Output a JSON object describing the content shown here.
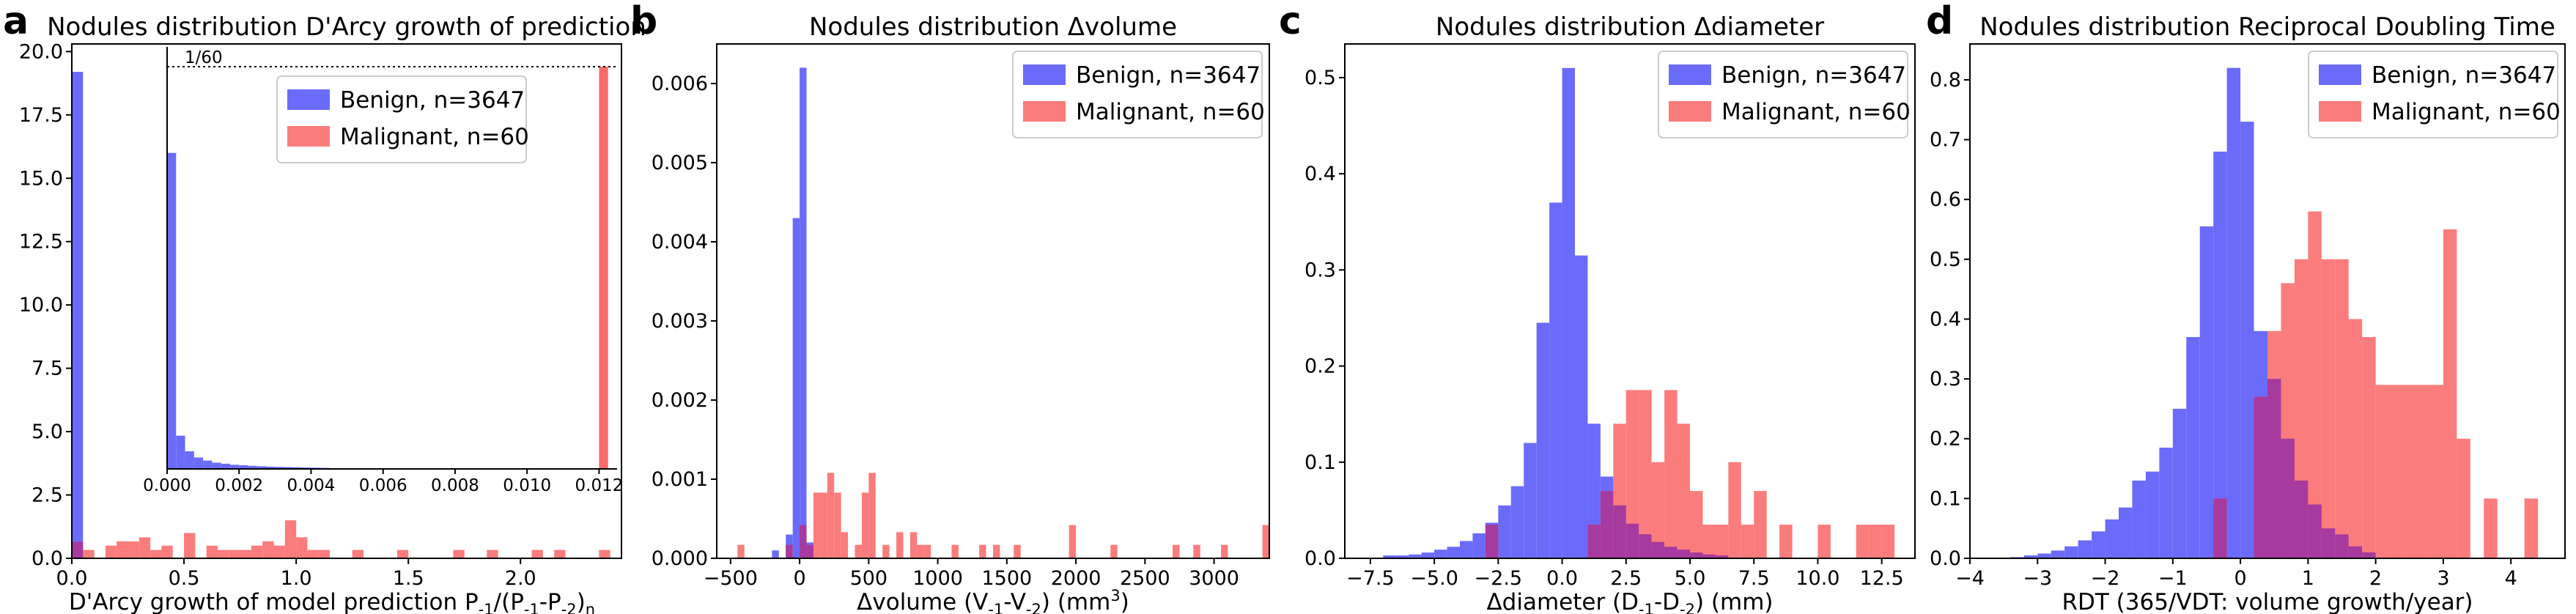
{
  "colors": {
    "benign": "#6b6bfa",
    "malignant": "#fb6a6a",
    "overlap": "#a73a9e"
  },
  "chart_data": [
    {
      "type": "bar",
      "panel": "a",
      "title": "Nodules distribution D'Arcy growth of prediction",
      "xlabel": "D'Arcy growth of model prediction P",
      "xlabel_parts": {
        "p1": "-1",
        "mid": "/(P",
        "p2": "-1",
        "dash": "-P",
        "p3": "-2",
        "close": ")",
        "p4": "n"
      },
      "xlim": [
        0,
        2.45
      ],
      "ylim": [
        0,
        20.3
      ],
      "xticks": [
        0.0,
        0.5,
        1.0,
        1.5,
        2.0
      ],
      "xticklabels": [
        "0.0",
        "0.5",
        "1.0",
        "1.5",
        "2.0"
      ],
      "yticks": [
        0,
        2.5,
        5.0,
        7.5,
        10.0,
        12.5,
        15.0,
        17.5,
        20.0
      ],
      "yticklabels": [
        "0.0",
        "2.5",
        "5.0",
        "7.5",
        "10.0",
        "12.5",
        "15.0",
        "17.5",
        "20.0"
      ],
      "legend": {
        "position": "inset upper right",
        "entries": [
          "Benign, n=3647",
          "Malignant, n=60"
        ]
      },
      "series": [
        {
          "name": "Benign, n=3647",
          "bin_width": 0.05,
          "bins": [
            [
              0.0,
              19.2
            ],
            [
              0.05,
              0.0
            ]
          ]
        },
        {
          "name": "Malignant, n=60",
          "bin_width": 0.05,
          "bins": [
            [
              0.0,
              0.65
            ],
            [
              0.05,
              0.33
            ],
            [
              0.15,
              0.5
            ],
            [
              0.2,
              0.67
            ],
            [
              0.25,
              0.67
            ],
            [
              0.3,
              0.83
            ],
            [
              0.35,
              0.33
            ],
            [
              0.4,
              0.5
            ],
            [
              0.5,
              1.0
            ],
            [
              0.6,
              0.5
            ],
            [
              0.65,
              0.33
            ],
            [
              0.7,
              0.33
            ],
            [
              0.75,
              0.33
            ],
            [
              0.8,
              0.5
            ],
            [
              0.85,
              0.67
            ],
            [
              0.9,
              0.5
            ],
            [
              0.95,
              1.5
            ],
            [
              1.0,
              0.83
            ],
            [
              1.05,
              0.33
            ],
            [
              1.1,
              0.33
            ],
            [
              1.25,
              0.33
            ],
            [
              1.45,
              0.33
            ],
            [
              1.7,
              0.33
            ],
            [
              1.85,
              0.33
            ],
            [
              2.05,
              0.33
            ],
            [
              2.15,
              0.33
            ],
            [
              2.35,
              0.33
            ]
          ]
        }
      ],
      "inset": {
        "xlim": [
          0,
          0.0125
        ],
        "ylim": [
          0,
          20.3
        ],
        "xticks": [
          0.0,
          0.002,
          0.004,
          0.006,
          0.008,
          0.01,
          0.012
        ],
        "xticklabels": [
          "0.000",
          "0.002",
          "0.004",
          "0.006",
          "0.008",
          "0.010",
          "0.012"
        ],
        "reference_line": {
          "y": 19.35,
          "label": "1/60"
        },
        "series": [
          {
            "name": "Benign",
            "bin_width": 0.00025,
            "bins": [
              [
                0.0,
                15.2
              ],
              [
                0.00025,
                1.6
              ],
              [
                0.0005,
                0.85
              ],
              [
                0.00075,
                0.55
              ],
              [
                0.001,
                0.4
              ],
              [
                0.00125,
                0.3
              ],
              [
                0.0015,
                0.25
              ],
              [
                0.00175,
                0.2
              ],
              [
                0.002,
                0.18
              ],
              [
                0.00225,
                0.15
              ],
              [
                0.0025,
                0.13
              ],
              [
                0.00275,
                0.11
              ],
              [
                0.003,
                0.1
              ],
              [
                0.00325,
                0.09
              ],
              [
                0.0035,
                0.08
              ],
              [
                0.00375,
                0.07
              ],
              [
                0.004,
                0.06
              ],
              [
                0.00425,
                0.05
              ]
            ]
          },
          {
            "name": "Malignant",
            "bin_width": 0.00025,
            "bins": [
              [
                0.012,
                19.35
              ]
            ]
          }
        ]
      }
    },
    {
      "type": "bar",
      "panel": "b",
      "title": "Nodules distribution Δvolume",
      "xlabel": "Δvolume (V",
      "xlabel_parts": {
        "s1": "-1",
        "mid": "-V",
        "s2": "-2",
        "close": ") (mm",
        "sup": "3",
        "end": ")"
      },
      "xlim": [
        -600,
        3400
      ],
      "ylim": [
        0,
        0.0065
      ],
      "xticks": [
        -500,
        0,
        500,
        1000,
        1500,
        2000,
        2500,
        3000
      ],
      "xticklabels": [
        "−500",
        "0",
        "500",
        "1000",
        "1500",
        "2000",
        "2500",
        "3000"
      ],
      "yticks": [
        0,
        0.001,
        0.002,
        0.003,
        0.004,
        0.005,
        0.006
      ],
      "yticklabels": [
        "0.000",
        "0.001",
        "0.002",
        "0.003",
        "0.004",
        "0.005",
        "0.006"
      ],
      "legend": {
        "position": "upper right",
        "entries": [
          "Benign, n=3647",
          "Malignant, n=60"
        ]
      },
      "series": [
        {
          "name": "Benign, n=3647",
          "bin_width": 50,
          "bins": [
            [
              -200,
              0.0001
            ],
            [
              -100,
              0.0003
            ],
            [
              -50,
              0.0043
            ],
            [
              0,
              0.0062
            ],
            [
              50,
              0.0002
            ]
          ]
        },
        {
          "name": "Malignant, n=60",
          "bin_width": 50,
          "bins": [
            [
              -450,
              0.00017
            ],
            [
              -100,
              0.00017
            ],
            [
              0,
              0.00042
            ],
            [
              50,
              0.00017
            ],
            [
              100,
              0.00083
            ],
            [
              150,
              0.00083
            ],
            [
              200,
              0.00108
            ],
            [
              250,
              0.00083
            ],
            [
              300,
              0.00033
            ],
            [
              400,
              0.00017
            ],
            [
              450,
              0.00083
            ],
            [
              500,
              0.00108
            ],
            [
              600,
              0.00017
            ],
            [
              700,
              0.00033
            ],
            [
              800,
              0.00033
            ],
            [
              850,
              0.00017
            ],
            [
              900,
              0.00017
            ],
            [
              1100,
              0.00017
            ],
            [
              1300,
              0.00017
            ],
            [
              1400,
              0.00017
            ],
            [
              1550,
              0.00017
            ],
            [
              1950,
              0.00042
            ],
            [
              2250,
              0.00017
            ],
            [
              2700,
              0.00017
            ],
            [
              2850,
              0.00017
            ],
            [
              3050,
              0.00017
            ],
            [
              3350,
              0.00042
            ]
          ]
        }
      ]
    },
    {
      "type": "bar",
      "panel": "c",
      "title": "Nodules distribution Δdiameter",
      "xlabel": "Δdiameter (D",
      "xlabel_parts": {
        "s1": "-1",
        "mid": "-D",
        "s2": "-2",
        "end": ") (mm)"
      },
      "xlim": [
        -8.5,
        13.8
      ],
      "ylim": [
        0,
        0.535
      ],
      "xticks": [
        -7.5,
        -5.0,
        -2.5,
        0.0,
        2.5,
        5.0,
        7.5,
        10.0,
        12.5
      ],
      "xticklabels": [
        "−7.5",
        "−5.0",
        "−2.5",
        "0.0",
        "2.5",
        "5.0",
        "7.5",
        "10.0",
        "12.5"
      ],
      "yticks": [
        0,
        0.1,
        0.2,
        0.3,
        0.4,
        0.5
      ],
      "yticklabels": [
        "0.0",
        "0.1",
        "0.2",
        "0.3",
        "0.4",
        "0.5"
      ],
      "legend": {
        "position": "upper right",
        "entries": [
          "Benign, n=3647",
          "Malignant, n=60"
        ]
      },
      "series": [
        {
          "name": "Benign, n=3647",
          "bin_width": 0.5,
          "bins": [
            [
              -7.0,
              0.003
            ],
            [
              -6.5,
              0.003
            ],
            [
              -6.0,
              0.004
            ],
            [
              -5.5,
              0.006
            ],
            [
              -5.0,
              0.009
            ],
            [
              -4.5,
              0.012
            ],
            [
              -4.0,
              0.018
            ],
            [
              -3.5,
              0.026
            ],
            [
              -3.0,
              0.037
            ],
            [
              -2.5,
              0.055
            ],
            [
              -2.0,
              0.075
            ],
            [
              -1.5,
              0.12
            ],
            [
              -1.0,
              0.245
            ],
            [
              -0.5,
              0.37
            ],
            [
              0.0,
              0.51
            ],
            [
              0.5,
              0.315
            ],
            [
              1.0,
              0.14
            ],
            [
              1.5,
              0.085
            ],
            [
              2.0,
              0.055
            ],
            [
              2.5,
              0.036
            ],
            [
              3.0,
              0.025
            ],
            [
              3.5,
              0.017
            ],
            [
              4.0,
              0.012
            ],
            [
              4.5,
              0.009
            ],
            [
              5.0,
              0.006
            ],
            [
              5.5,
              0.004
            ],
            [
              6.0,
              0.003
            ]
          ]
        },
        {
          "name": "Malignant, n=60",
          "bin_width": 0.5,
          "bins": [
            [
              -3.0,
              0.035
            ],
            [
              1.0,
              0.035
            ],
            [
              1.5,
              0.07
            ],
            [
              2.0,
              0.14
            ],
            [
              2.5,
              0.175
            ],
            [
              3.0,
              0.175
            ],
            [
              3.5,
              0.1
            ],
            [
              4.0,
              0.175
            ],
            [
              4.5,
              0.14
            ],
            [
              5.0,
              0.07
            ],
            [
              5.5,
              0.035
            ],
            [
              6.0,
              0.035
            ],
            [
              6.5,
              0.1
            ],
            [
              7.0,
              0.035
            ],
            [
              7.5,
              0.07
            ],
            [
              8.5,
              0.035
            ],
            [
              10.0,
              0.035
            ],
            [
              11.5,
              0.035
            ],
            [
              12.0,
              0.035
            ],
            [
              12.5,
              0.035
            ]
          ]
        }
      ]
    },
    {
      "type": "bar",
      "panel": "d",
      "title": "Nodules distribution Reciprocal Doubling Time",
      "xlabel": "RDT (365/VDT: volume growth/year)",
      "xlim": [
        -4.0,
        4.8
      ],
      "ylim": [
        0,
        0.86
      ],
      "xticks": [
        -4,
        -3,
        -2,
        -1,
        0,
        1,
        2,
        3,
        4
      ],
      "xticklabels": [
        "−4",
        "−3",
        "−2",
        "−1",
        "0",
        "1",
        "2",
        "3",
        "4"
      ],
      "yticks": [
        0,
        0.1,
        0.2,
        0.3,
        0.4,
        0.5,
        0.6,
        0.7,
        0.8
      ],
      "yticklabels": [
        "0.0",
        "0.1",
        "0.2",
        "0.3",
        "0.4",
        "0.5",
        "0.6",
        "0.7",
        "0.8"
      ],
      "legend": {
        "position": "upper right",
        "entries": [
          "Benign, n=3647",
          "Malignant, n=60"
        ]
      },
      "series": [
        {
          "name": "Benign, n=3647",
          "bin_width": 0.2,
          "bins": [
            [
              -3.4,
              0.002
            ],
            [
              -3.2,
              0.005
            ],
            [
              -3.0,
              0.008
            ],
            [
              -2.8,
              0.013
            ],
            [
              -2.6,
              0.02
            ],
            [
              -2.4,
              0.03
            ],
            [
              -2.2,
              0.045
            ],
            [
              -2.0,
              0.065
            ],
            [
              -1.8,
              0.085
            ],
            [
              -1.6,
              0.13
            ],
            [
              -1.4,
              0.145
            ],
            [
              -1.2,
              0.185
            ],
            [
              -1.0,
              0.25
            ],
            [
              -0.8,
              0.37
            ],
            [
              -0.6,
              0.555
            ],
            [
              -0.4,
              0.68
            ],
            [
              -0.2,
              0.82
            ],
            [
              0.0,
              0.73
            ],
            [
              0.2,
              0.38
            ],
            [
              0.4,
              0.3
            ],
            [
              0.6,
              0.2
            ],
            [
              0.8,
              0.13
            ],
            [
              1.0,
              0.09
            ],
            [
              1.2,
              0.05
            ],
            [
              1.4,
              0.04
            ],
            [
              1.6,
              0.02
            ],
            [
              1.8,
              0.01
            ]
          ]
        },
        {
          "name": "Malignant, n=60",
          "bin_width": 0.2,
          "bins": [
            [
              -0.4,
              0.1
            ],
            [
              0.2,
              0.27
            ],
            [
              0.4,
              0.38
            ],
            [
              0.6,
              0.46
            ],
            [
              0.8,
              0.5
            ],
            [
              1.0,
              0.58
            ],
            [
              1.2,
              0.5
            ],
            [
              1.4,
              0.5
            ],
            [
              1.6,
              0.4
            ],
            [
              1.8,
              0.37
            ],
            [
              2.0,
              0.29
            ],
            [
              2.2,
              0.29
            ],
            [
              2.4,
              0.29
            ],
            [
              2.6,
              0.29
            ],
            [
              2.8,
              0.29
            ],
            [
              3.0,
              0.55
            ],
            [
              3.2,
              0.2
            ],
            [
              3.6,
              0.1
            ],
            [
              4.2,
              0.1
            ]
          ]
        }
      ]
    }
  ]
}
